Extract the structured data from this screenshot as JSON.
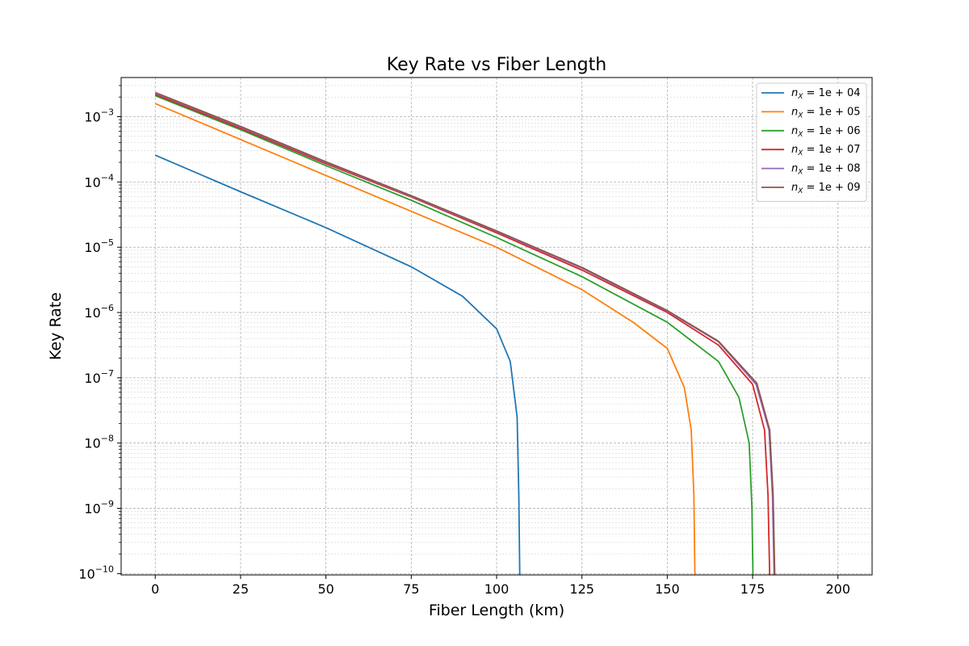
{
  "chart_data": {
    "type": "line",
    "title": "Key Rate vs Fiber Length",
    "xlabel": "Fiber Length (km)",
    "ylabel": "Key Rate",
    "xlim": [
      -10,
      210
    ],
    "ylim_log10": [
      -10.02,
      -2.4
    ],
    "y_scale": "log",
    "grid": true,
    "legend_position": "top-right",
    "x_ticks": [
      0,
      25,
      50,
      75,
      100,
      125,
      150,
      175,
      200
    ],
    "x_tick_labels": [
      "0",
      "25",
      "50",
      "75",
      "100",
      "125",
      "150",
      "175",
      "200"
    ],
    "y_ticks_log10": [
      -10,
      -9,
      -8,
      -7,
      -6,
      -5,
      -4,
      -3
    ],
    "y_tick_labels": [
      {
        "base": "10",
        "exp": "−10"
      },
      {
        "base": "10",
        "exp": "−9"
      },
      {
        "base": "10",
        "exp": "−8"
      },
      {
        "base": "10",
        "exp": "−7"
      },
      {
        "base": "10",
        "exp": "−6"
      },
      {
        "base": "10",
        "exp": "−5"
      },
      {
        "base": "10",
        "exp": "−4"
      },
      {
        "base": "10",
        "exp": "−3"
      }
    ],
    "series": [
      {
        "legend_pre": "n",
        "legend_sub": "X",
        "legend_post": " = 1e + 04",
        "color": "#1f77b4",
        "x": [
          0,
          25,
          50,
          75,
          90,
          100,
          104,
          106,
          106.5,
          106.8
        ],
        "logy": [
          -3.59,
          -4.15,
          -4.7,
          -5.3,
          -5.75,
          -6.25,
          -6.75,
          -7.6,
          -8.8,
          -10.05
        ]
      },
      {
        "legend_pre": "n",
        "legend_sub": "X",
        "legend_post": " = 1e + 05",
        "color": "#ff7f0e",
        "x": [
          0,
          25,
          50,
          75,
          100,
          125,
          140,
          150,
          155,
          157,
          157.8,
          158.1
        ],
        "logy": [
          -2.8,
          -3.35,
          -3.9,
          -4.45,
          -5.0,
          -5.65,
          -6.15,
          -6.55,
          -7.15,
          -7.8,
          -8.8,
          -10.05
        ]
      },
      {
        "legend_pre": "n",
        "legend_sub": "X",
        "legend_post": " = 1e + 06",
        "color": "#2ca02c",
        "x": [
          0,
          25,
          50,
          75,
          100,
          125,
          150,
          165,
          171,
          174,
          174.8,
          175.1
        ],
        "logy": [
          -2.68,
          -3.2,
          -3.75,
          -4.28,
          -4.85,
          -5.45,
          -6.15,
          -6.75,
          -7.3,
          -8.0,
          -9.0,
          -10.05
        ]
      },
      {
        "legend_pre": "n",
        "legend_sub": "X",
        "legend_post": " = 1e + 07",
        "color": "#d62728",
        "x": [
          0,
          25,
          50,
          75,
          100,
          125,
          150,
          165,
          175,
          178.5,
          179.5,
          180.0
        ],
        "logy": [
          -2.66,
          -3.18,
          -3.72,
          -4.23,
          -4.78,
          -5.35,
          -6.0,
          -6.5,
          -7.1,
          -7.8,
          -8.8,
          -10.05
        ]
      },
      {
        "legend_pre": "n",
        "legend_sub": "X",
        "legend_post": " = 1e + 08",
        "color": "#9467bd",
        "x": [
          0,
          25,
          50,
          75,
          100,
          125,
          150,
          165,
          176,
          179.8,
          180.8,
          181.3
        ],
        "logy": [
          -2.64,
          -3.16,
          -3.7,
          -4.22,
          -4.76,
          -5.32,
          -5.98,
          -6.45,
          -7.1,
          -7.8,
          -8.8,
          -10.05
        ]
      },
      {
        "legend_pre": "n",
        "legend_sub": "X",
        "legend_post": " = 1e + 09",
        "color": "#8c564b",
        "x": [
          0,
          25,
          50,
          75,
          100,
          125,
          150,
          165,
          176.2,
          180.0,
          181.0,
          181.5
        ],
        "logy": [
          -2.63,
          -3.15,
          -3.69,
          -4.21,
          -4.75,
          -5.31,
          -5.97,
          -6.44,
          -7.08,
          -7.8,
          -8.8,
          -10.05
        ]
      }
    ]
  }
}
